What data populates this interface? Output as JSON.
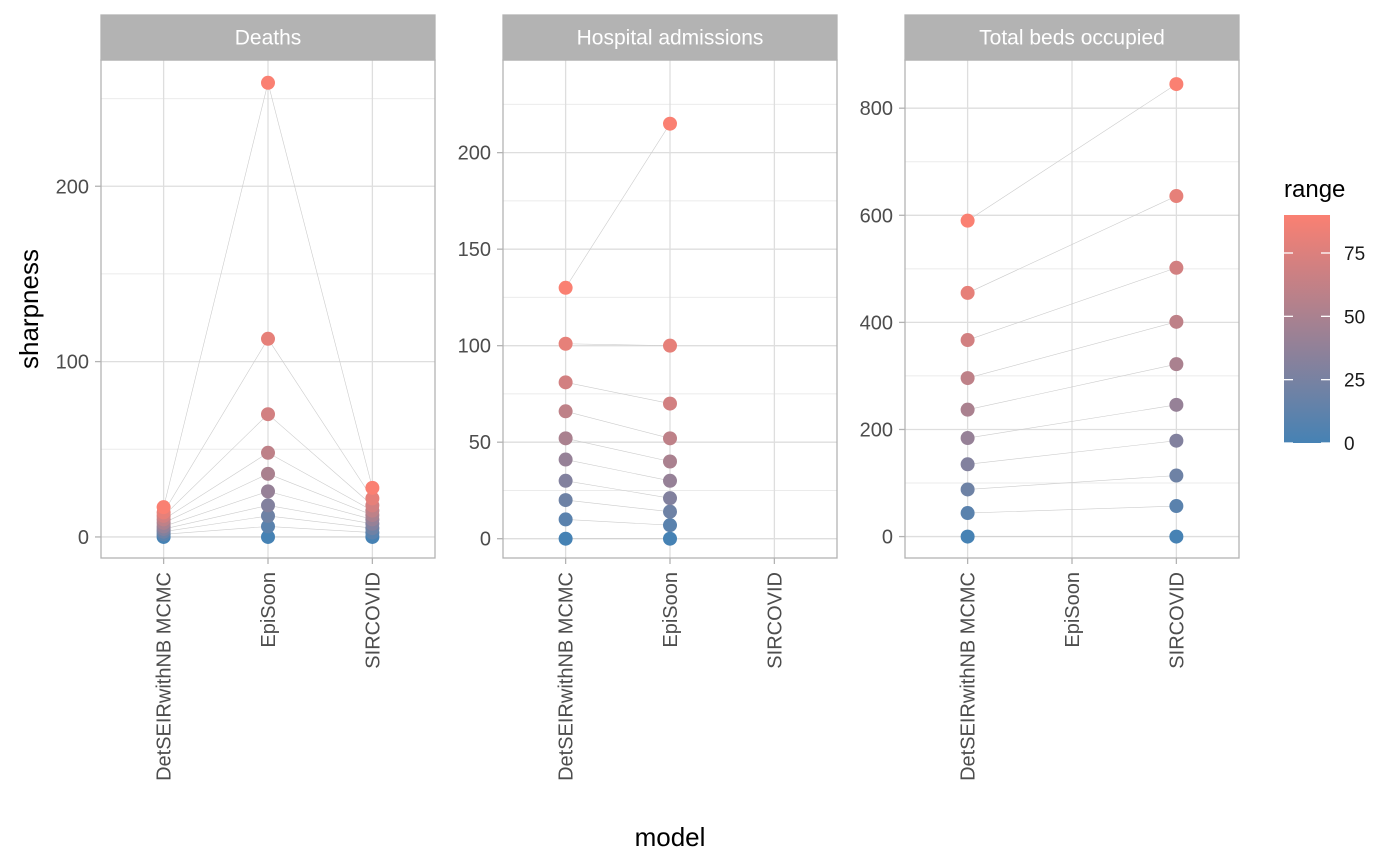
{
  "chart_data": {
    "type": "scatter",
    "xlabel": "model",
    "ylabel": "sharpness",
    "models": [
      "DetSEIRwithNB MCMC",
      "EpiSoon",
      "SIRCOVID"
    ],
    "connecting_lines": true,
    "grid": true,
    "color_scale": {
      "name": "range",
      "low_color": "#4682b4",
      "high_color": "#fa8072",
      "limits": [
        0,
        90
      ],
      "breaks": [
        0,
        25,
        50,
        75
      ],
      "break_labels": [
        "0",
        "25",
        "50",
        "75"
      ]
    },
    "legend_position": "right",
    "range_levels": [
      0,
      10,
      20,
      30,
      40,
      50,
      60,
      70,
      80,
      90
    ],
    "panels": [
      {
        "title": "Deaths",
        "ylim": [
          -12,
          272
        ],
        "yticks": [
          0,
          100,
          200
        ],
        "series": {
          "DetSEIRwithNB MCMC": [
            0,
            1.5,
            3,
            4.5,
            6,
            8,
            10,
            12,
            14,
            17
          ],
          "EpiSoon": [
            0,
            6,
            12,
            18,
            26,
            36,
            48,
            70,
            113,
            259
          ],
          "SIRCOVID": [
            0,
            2.5,
            5,
            7.5,
            10,
            12.5,
            15,
            18,
            22,
            28
          ]
        }
      },
      {
        "title": "Hospital admissions",
        "ylim": [
          -10,
          248
        ],
        "yticks": [
          0,
          50,
          100,
          150,
          200
        ],
        "series": {
          "DetSEIRwithNB MCMC": [
            0,
            10,
            20,
            30,
            41,
            52,
            66,
            81,
            101,
            130
          ],
          "EpiSoon": [
            0,
            7,
            14,
            21,
            30,
            40,
            52,
            70,
            100,
            215
          ]
        }
      },
      {
        "title": "Total beds occupied",
        "ylim": [
          -40,
          890
        ],
        "yticks": [
          0,
          200,
          400,
          600,
          800
        ],
        "series": {
          "DetSEIRwithNB MCMC": [
            0,
            44,
            88,
            135,
            184,
            237,
            296,
            367,
            455,
            590
          ],
          "SIRCOVID": [
            0,
            57,
            114,
            179,
            246,
            322,
            401,
            502,
            636,
            845
          ]
        }
      }
    ]
  }
}
